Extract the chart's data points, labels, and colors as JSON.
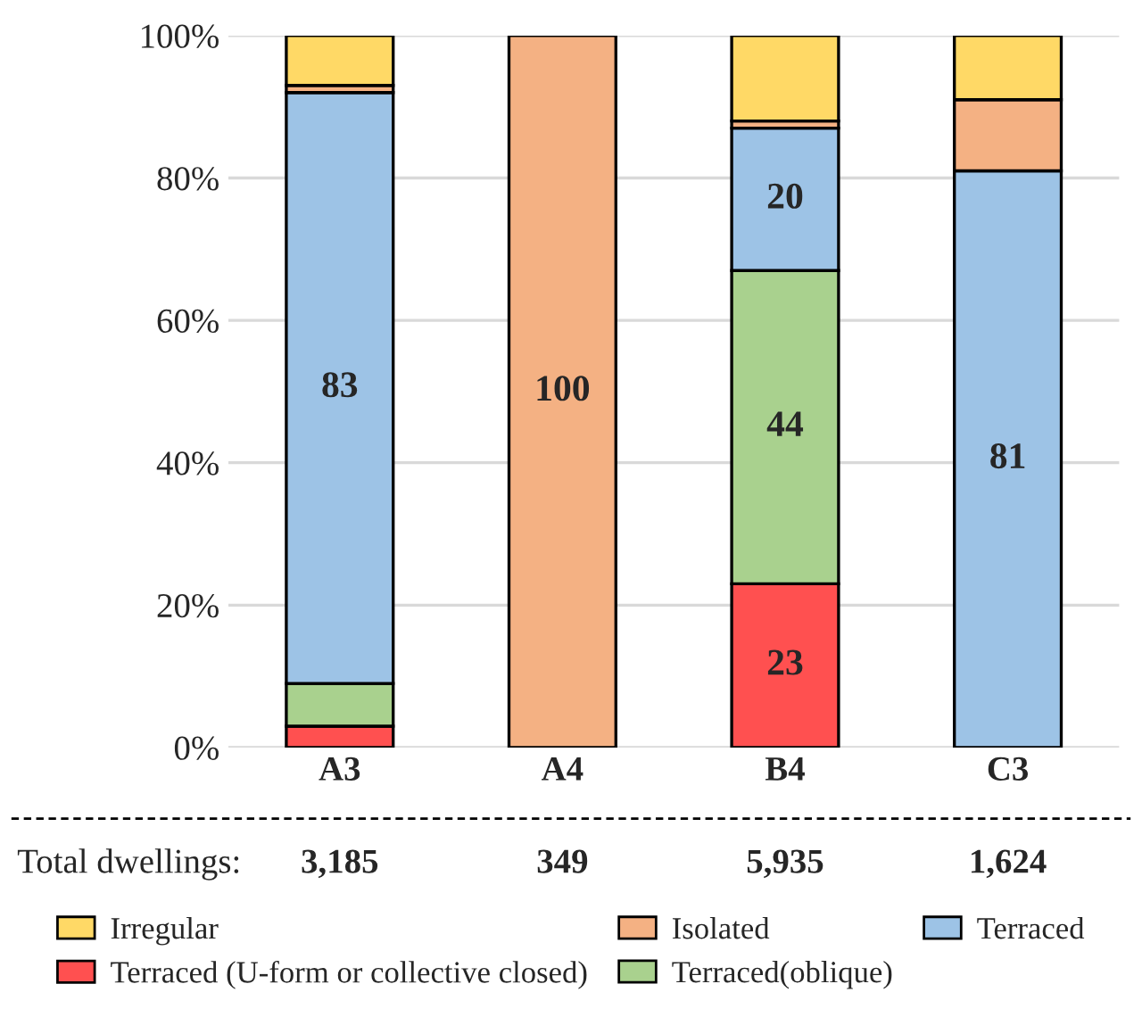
{
  "chart_data": {
    "type": "bar",
    "stacked": true,
    "categories": [
      "A3",
      "A4",
      "B4",
      "C3"
    ],
    "series": [
      {
        "name": "Terraced (U-form or collective closed)",
        "color": "#ff5050",
        "values": [
          3,
          0,
          23,
          0
        ],
        "value_labels": [
          null,
          null,
          "23",
          null
        ]
      },
      {
        "name": "Terraced(oblique)",
        "color": "#a9d18e",
        "values": [
          6,
          0,
          44,
          0
        ],
        "value_labels": [
          null,
          null,
          "44",
          null
        ]
      },
      {
        "name": "Terraced",
        "color": "#9dc3e6",
        "values": [
          83,
          0,
          20,
          81
        ],
        "value_labels": [
          "83",
          null,
          "20",
          "81"
        ]
      },
      {
        "name": "Isolated",
        "color": "#f4b183",
        "values": [
          1,
          100,
          1,
          10
        ],
        "value_labels": [
          null,
          "100",
          null,
          null
        ]
      },
      {
        "name": "Irregular",
        "color": "#ffd966",
        "values": [
          7,
          0,
          12,
          9
        ],
        "value_labels": [
          null,
          null,
          null,
          null
        ]
      }
    ],
    "ylim": [
      0,
      100
    ],
    "yticks": [
      {
        "value": 0,
        "label": "0%"
      },
      {
        "value": 20,
        "label": "20%"
      },
      {
        "value": 40,
        "label": "40%"
      },
      {
        "value": 60,
        "label": "60%"
      },
      {
        "value": 80,
        "label": "80%"
      },
      {
        "value": 100,
        "label": "100%"
      }
    ],
    "grid": "y",
    "legend": "bottom",
    "annotations": [
      "Total dwellings:",
      "3,185",
      "349",
      "5,935",
      "1,624"
    ]
  }
}
